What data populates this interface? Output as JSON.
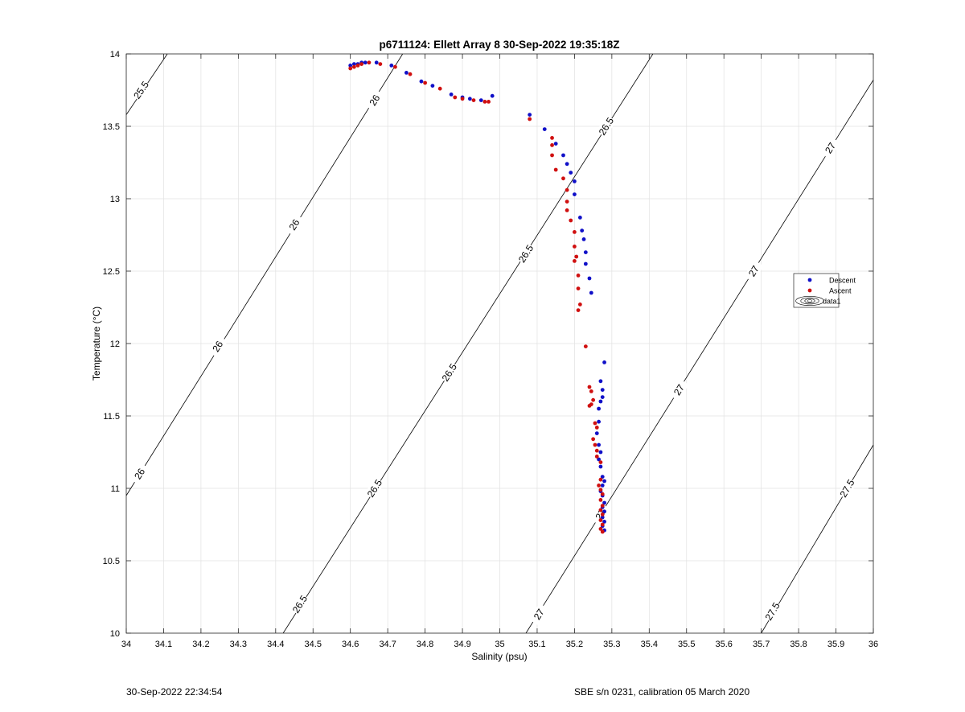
{
  "chart_data": {
    "type": "scatter",
    "title": "p6711124: Ellett Array 8 30-Sep-2022 19:35:18Z",
    "xlabel": "Salinity (psu)",
    "ylabel": "Temperature (°C)",
    "xlim": [
      34,
      36
    ],
    "ylim": [
      10,
      14
    ],
    "x_ticks": [
      "34",
      "34.1",
      "34.2",
      "34.3",
      "34.4",
      "34.5",
      "34.6",
      "34.7",
      "34.8",
      "34.9",
      "35",
      "35.1",
      "35.2",
      "35.3",
      "35.4",
      "35.5",
      "35.6",
      "35.7",
      "35.8",
      "35.9",
      "36"
    ],
    "y_ticks": [
      "10",
      "10.5",
      "11",
      "11.5",
      "12",
      "12.5",
      "13",
      "13.5",
      "14"
    ],
    "grid": true,
    "legend_position": "right",
    "legend": [
      "Descent",
      "Ascent",
      "data1"
    ],
    "contour_line_color": "#000000",
    "contours": [
      {
        "level": "25.5",
        "points": [
          [
            34.0,
            13.58
          ],
          [
            34.11,
            14.0
          ]
        ],
        "labels": [
          [
            34.04,
            13.75
          ]
        ]
      },
      {
        "level": "26",
        "points": [
          [
            34.0,
            10.95
          ],
          [
            34.74,
            14.0
          ]
        ],
        "labels": [
          [
            34.036,
            11.1
          ],
          [
            34.245,
            11.98
          ],
          [
            34.45,
            12.82
          ],
          [
            34.665,
            13.68
          ]
        ]
      },
      {
        "level": "26.5",
        "points": [
          [
            34.42,
            10.0
          ],
          [
            35.41,
            14.0
          ]
        ],
        "labels": [
          [
            34.465,
            10.2
          ],
          [
            34.665,
            11.0
          ],
          [
            34.865,
            11.8
          ],
          [
            35.07,
            12.62
          ],
          [
            35.285,
            13.5
          ]
        ]
      },
      {
        "level": "27",
        "points": [
          [
            35.07,
            10.0
          ],
          [
            36.0,
            13.82
          ]
        ],
        "labels": [
          [
            35.105,
            10.13
          ],
          [
            35.27,
            10.82
          ],
          [
            35.48,
            11.68
          ],
          [
            35.68,
            12.5
          ],
          [
            35.885,
            13.35
          ]
        ]
      },
      {
        "level": "27.5",
        "points": [
          [
            35.7,
            10.0
          ],
          [
            36.0,
            11.3
          ]
        ],
        "labels": [
          [
            35.73,
            10.15
          ],
          [
            35.93,
            11.0
          ]
        ]
      }
    ],
    "series": [
      {
        "name": "Descent",
        "color": "#1010c8",
        "points": [
          [
            34.6,
            13.92
          ],
          [
            34.61,
            13.93
          ],
          [
            34.62,
            13.93
          ],
          [
            34.63,
            13.94
          ],
          [
            34.64,
            13.94
          ],
          [
            34.67,
            13.94
          ],
          [
            34.71,
            13.92
          ],
          [
            34.75,
            13.87
          ],
          [
            34.79,
            13.81
          ],
          [
            34.82,
            13.78
          ],
          [
            34.87,
            13.72
          ],
          [
            34.9,
            13.7
          ],
          [
            34.92,
            13.69
          ],
          [
            34.95,
            13.68
          ],
          [
            34.98,
            13.71
          ],
          [
            35.08,
            13.58
          ],
          [
            35.12,
            13.48
          ],
          [
            35.15,
            13.38
          ],
          [
            35.17,
            13.3
          ],
          [
            35.18,
            13.24
          ],
          [
            35.19,
            13.18
          ],
          [
            35.2,
            13.12
          ],
          [
            35.2,
            13.03
          ],
          [
            35.215,
            12.87
          ],
          [
            35.22,
            12.78
          ],
          [
            35.225,
            12.72
          ],
          [
            35.23,
            12.63
          ],
          [
            35.23,
            12.55
          ],
          [
            35.24,
            12.45
          ],
          [
            35.245,
            12.35
          ],
          [
            35.28,
            11.87
          ],
          [
            35.27,
            11.74
          ],
          [
            35.275,
            11.68
          ],
          [
            35.275,
            11.63
          ],
          [
            35.27,
            11.6
          ],
          [
            35.265,
            11.55
          ],
          [
            35.265,
            11.46
          ],
          [
            35.26,
            11.38
          ],
          [
            35.265,
            11.3
          ],
          [
            35.27,
            11.25
          ],
          [
            35.265,
            11.2
          ],
          [
            35.27,
            11.15
          ],
          [
            35.275,
            11.08
          ],
          [
            35.28,
            11.05
          ],
          [
            35.275,
            11.02
          ],
          [
            35.27,
            10.98
          ],
          [
            35.275,
            10.95
          ],
          [
            35.28,
            10.9
          ],
          [
            35.275,
            10.87
          ],
          [
            35.28,
            10.84
          ],
          [
            35.275,
            10.8
          ],
          [
            35.28,
            10.77
          ],
          [
            35.275,
            10.74
          ],
          [
            35.28,
            10.71
          ]
        ]
      },
      {
        "name": "Ascent",
        "color": "#d01010",
        "points": [
          [
            34.6,
            13.9
          ],
          [
            34.61,
            13.91
          ],
          [
            34.62,
            13.92
          ],
          [
            34.63,
            13.93
          ],
          [
            34.65,
            13.94
          ],
          [
            34.68,
            13.93
          ],
          [
            34.72,
            13.91
          ],
          [
            34.76,
            13.86
          ],
          [
            34.8,
            13.8
          ],
          [
            34.84,
            13.76
          ],
          [
            34.88,
            13.7
          ],
          [
            34.9,
            13.69
          ],
          [
            34.93,
            13.68
          ],
          [
            34.96,
            13.67
          ],
          [
            34.97,
            13.67
          ],
          [
            35.08,
            13.55
          ],
          [
            35.14,
            13.42
          ],
          [
            35.14,
            13.37
          ],
          [
            35.14,
            13.3
          ],
          [
            35.15,
            13.2
          ],
          [
            35.17,
            13.14
          ],
          [
            35.18,
            13.06
          ],
          [
            35.18,
            12.98
          ],
          [
            35.18,
            12.92
          ],
          [
            35.19,
            12.85
          ],
          [
            35.2,
            12.77
          ],
          [
            35.2,
            12.67
          ],
          [
            35.205,
            12.6
          ],
          [
            35.2,
            12.57
          ],
          [
            35.21,
            12.47
          ],
          [
            35.21,
            12.38
          ],
          [
            35.215,
            12.27
          ],
          [
            35.21,
            12.23
          ],
          [
            35.23,
            11.98
          ],
          [
            35.24,
            11.7
          ],
          [
            35.245,
            11.67
          ],
          [
            35.25,
            11.61
          ],
          [
            35.245,
            11.58
          ],
          [
            35.24,
            11.57
          ],
          [
            35.255,
            11.45
          ],
          [
            35.26,
            11.42
          ],
          [
            35.25,
            11.34
          ],
          [
            35.255,
            11.3
          ],
          [
            35.26,
            11.26
          ],
          [
            35.26,
            11.22
          ],
          [
            35.27,
            11.18
          ],
          [
            35.27,
            11.06
          ],
          [
            35.265,
            11.02
          ],
          [
            35.27,
            10.99
          ],
          [
            35.275,
            10.96
          ],
          [
            35.27,
            10.92
          ],
          [
            35.275,
            10.88
          ],
          [
            35.27,
            10.85
          ],
          [
            35.275,
            10.82
          ],
          [
            35.27,
            10.78
          ],
          [
            35.275,
            10.75
          ],
          [
            35.27,
            10.72
          ],
          [
            35.275,
            10.7
          ]
        ]
      }
    ]
  },
  "footer": {
    "left": "30-Sep-2022 22:34:54",
    "right": "SBE s/n 0231, calibration 05 March 2020"
  }
}
